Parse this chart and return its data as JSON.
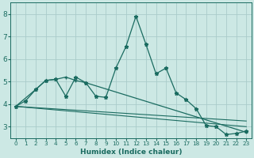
{
  "xlabel": "Humidex (Indice chaleur)",
  "bg_color": "#cce8e4",
  "grid_color": "#aaccca",
  "line_color": "#1a6b60",
  "xlim": [
    -0.5,
    23.5
  ],
  "ylim": [
    2.5,
    8.5
  ],
  "yticks": [
    3,
    4,
    5,
    6,
    7,
    8
  ],
  "xticks": [
    0,
    1,
    2,
    3,
    4,
    5,
    6,
    7,
    8,
    9,
    10,
    11,
    12,
    13,
    14,
    15,
    16,
    17,
    18,
    19,
    20,
    21,
    22,
    23
  ],
  "series0_x": [
    0,
    1,
    2,
    3,
    4,
    5,
    6,
    7,
    8,
    9,
    10,
    11,
    12,
    13,
    14,
    15,
    16,
    17,
    18,
    19,
    20,
    21,
    22,
    23
  ],
  "series0_y": [
    3.9,
    4.15,
    4.65,
    5.05,
    5.1,
    4.35,
    5.2,
    4.95,
    4.35,
    4.3,
    5.6,
    6.55,
    7.9,
    6.65,
    5.35,
    5.6,
    4.5,
    4.2,
    3.8,
    3.05,
    3.0,
    2.65,
    2.7,
    2.8
  ],
  "series1_x": [
    0,
    2,
    3,
    4,
    5,
    6,
    7,
    23
  ],
  "series1_y": [
    3.9,
    4.65,
    5.05,
    5.1,
    5.2,
    5.05,
    4.95,
    2.75
  ],
  "series2_x": [
    0,
    23
  ],
  "series2_y": [
    3.9,
    3.25
  ],
  "series3_x": [
    0,
    23
  ],
  "series3_y": [
    3.9,
    3.0
  ]
}
